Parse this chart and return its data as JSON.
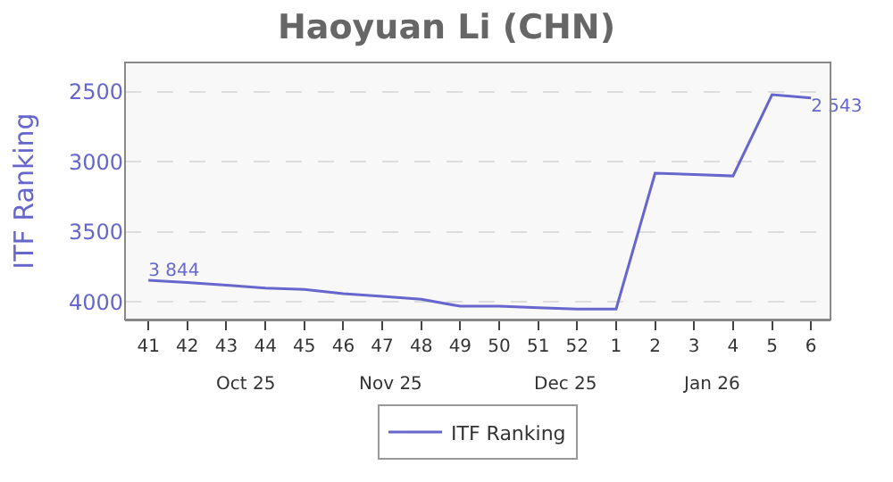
{
  "chart_data": {
    "type": "line",
    "title": "Haoyuan Li (CHN)",
    "ylabel": "ITF Ranking",
    "categories": [
      "41",
      "42",
      "43",
      "44",
      "45",
      "46",
      "47",
      "48",
      "49",
      "50",
      "51",
      "52",
      "1",
      "2",
      "3",
      "4",
      "5",
      "6"
    ],
    "series": [
      {
        "name": "ITF Ranking",
        "color": "#6666cc",
        "values": [
          3844,
          3860,
          3880,
          3900,
          3910,
          3940,
          3960,
          3980,
          4030,
          4030,
          4040,
          4050,
          4050,
          3080,
          3090,
          3100,
          2520,
          2543
        ],
        "value_labels": [
          "3 844",
          null,
          null,
          null,
          null,
          null,
          null,
          null,
          null,
          null,
          null,
          null,
          null,
          null,
          null,
          null,
          null,
          "2 543"
        ]
      }
    ],
    "ylim": [
      4125,
      2290
    ],
    "yticks": [
      2500,
      3000,
      3500,
      4000
    ],
    "annotations": [
      "Oct 25",
      "Nov 25",
      "Dec 25",
      "Jan 26"
    ],
    "grid": "y",
    "legend": "bottom",
    "marker": "none",
    "line_style": "solid"
  }
}
